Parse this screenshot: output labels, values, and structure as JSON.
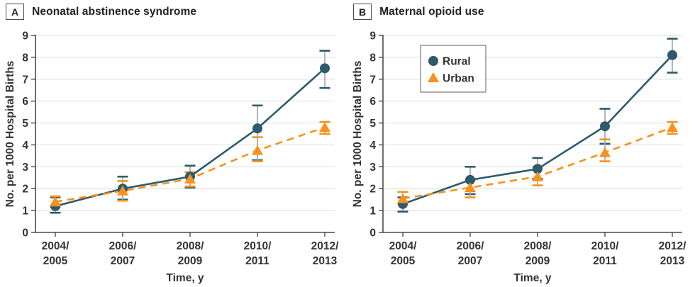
{
  "figure": {
    "panels": [
      {
        "label": "A",
        "title": "Neonatal abstinence syndrome"
      },
      {
        "label": "B",
        "title": "Maternal opioid use"
      }
    ]
  },
  "colors": {
    "rural": "#2E5A6B",
    "urban": "#F6921E",
    "error_line": "#A9AEB1",
    "grid": "#E3E3E3",
    "axis": "#4A4A4A",
    "text": "#333333",
    "legend_border": "#8C8C8C"
  },
  "chart_data": [
    {
      "type": "line",
      "panel": "A",
      "title": "Neonatal abstinence syndrome",
      "categories": [
        "2004/2005",
        "2006/2007",
        "2008/2009",
        "2010/2011",
        "2012/2013"
      ],
      "xlabel": "Time, y",
      "ylabel": "No. per 1000 Hospital Births",
      "ylim": [
        0,
        9
      ],
      "yticks": [
        0,
        1,
        2,
        3,
        4,
        5,
        6,
        7,
        8,
        9
      ],
      "grid": true,
      "show_legend": false,
      "series": [
        {
          "name": "Rural",
          "marker": "circle",
          "line": "solid",
          "color": "#2E5A6B",
          "values": [
            1.2,
            2.0,
            2.55,
            4.75,
            7.5
          ],
          "ci_low": [
            0.9,
            1.5,
            2.05,
            3.3,
            6.6
          ],
          "ci_high": [
            1.6,
            2.55,
            3.05,
            5.8,
            8.3
          ]
        },
        {
          "name": "Urban",
          "marker": "triangle",
          "line": "dashed",
          "color": "#F6921E",
          "values": [
            1.4,
            1.9,
            2.45,
            3.75,
            4.8
          ],
          "ci_low": [
            1.15,
            1.45,
            2.1,
            3.25,
            4.5
          ],
          "ci_high": [
            1.65,
            2.35,
            2.75,
            4.35,
            5.05
          ]
        }
      ]
    },
    {
      "type": "line",
      "panel": "B",
      "title": "Maternal opioid use",
      "categories": [
        "2004/2005",
        "2006/2007",
        "2008/2009",
        "2010/2011",
        "2012/2013"
      ],
      "xlabel": "Time, y",
      "ylabel": "No. per 1000 Hospital Births",
      "ylim": [
        0,
        9
      ],
      "yticks": [
        0,
        1,
        2,
        3,
        4,
        5,
        6,
        7,
        8,
        9
      ],
      "grid": true,
      "show_legend": true,
      "legend_position": "upper-left",
      "series": [
        {
          "name": "Rural",
          "marker": "circle",
          "line": "solid",
          "color": "#2E5A6B",
          "values": [
            1.3,
            2.4,
            2.9,
            4.85,
            8.1
          ],
          "ci_low": [
            0.95,
            1.75,
            2.45,
            4.05,
            7.3
          ],
          "ci_high": [
            1.6,
            3.0,
            3.4,
            5.65,
            8.85
          ]
        },
        {
          "name": "Urban",
          "marker": "triangle",
          "line": "dashed",
          "color": "#F6921E",
          "values": [
            1.55,
            2.05,
            2.55,
            3.65,
            4.8
          ],
          "ci_low": [
            1.3,
            1.6,
            2.15,
            3.25,
            4.5
          ],
          "ci_high": [
            1.85,
            2.4,
            3.0,
            4.25,
            5.05
          ]
        }
      ]
    }
  ]
}
